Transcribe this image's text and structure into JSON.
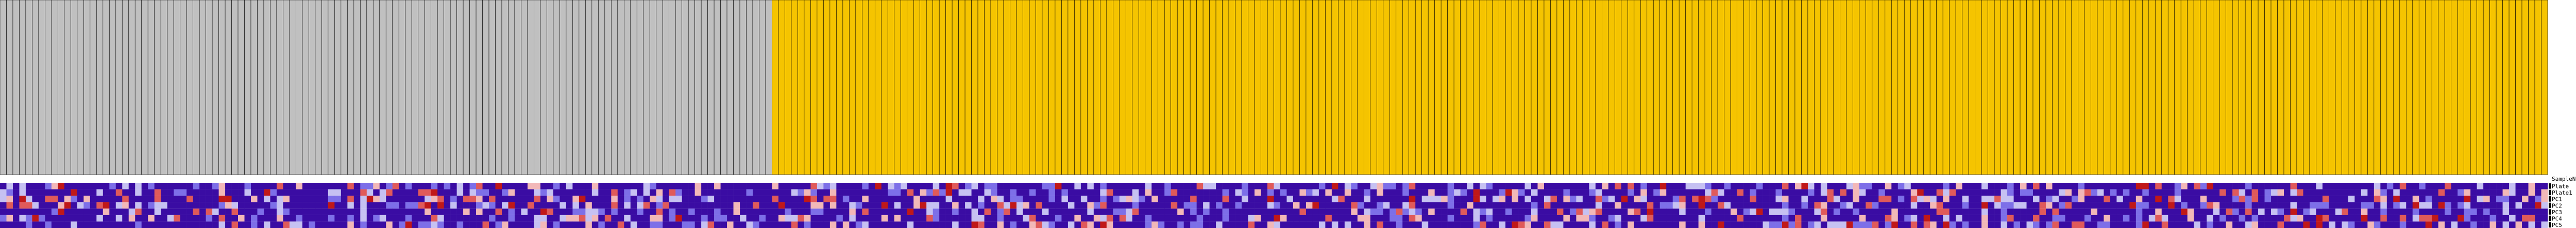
{
  "chart_data": {
    "type": "heatmap",
    "title": "",
    "xlabel": "",
    "ylabel": "",
    "grid": false,
    "legend_position": "right",
    "annotation_header": "SampleName",
    "annotation_rows": [
      "Plate",
      "Plate1",
      "PC1",
      "PC2",
      "PC3",
      "PC4",
      "PC5"
    ],
    "groups": [
      {
        "name": "",
        "count": 120,
        "color": "#c0c0c0"
      },
      {
        "name": "",
        "count": 276,
        "color": "#f5c400"
      }
    ],
    "heatmap_palette": [
      "#3a0ca3",
      "#7d6fe8",
      "#c6c1f2",
      "#f2b8b8",
      "#e05a5a",
      "#c01818"
    ],
    "note": ""
  }
}
